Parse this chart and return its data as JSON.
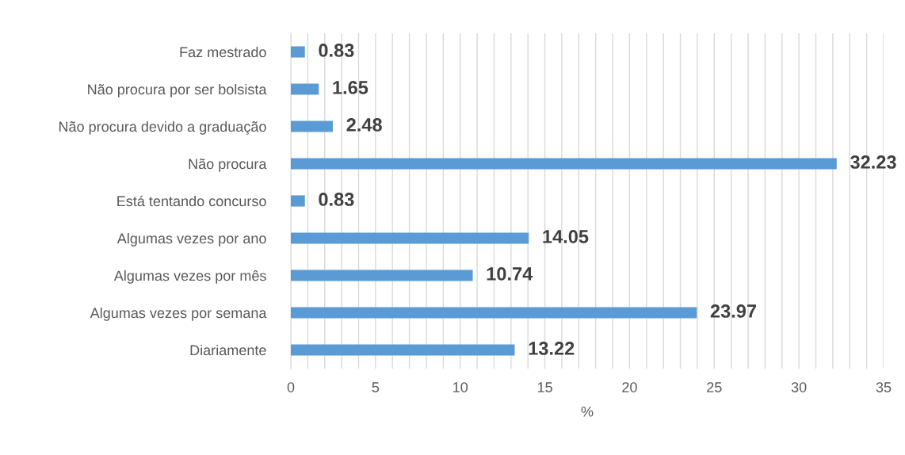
{
  "chart_data": {
    "type": "bar",
    "orientation": "horizontal",
    "xlabel": "%",
    "categories": [
      "Faz mestrado",
      "Não procura por ser bolsista",
      "Não procura devido a graduação",
      "Não procura",
      "Está tentando concurso",
      "Algumas vezes por ano",
      "Algumas vezes por mês",
      "Algumas vezes por semana",
      "Diariamente"
    ],
    "values": [
      0.83,
      1.65,
      2.48,
      32.23,
      0.83,
      14.05,
      10.74,
      23.97,
      13.22
    ],
    "color": "#5b9bd5",
    "data_labels": true,
    "grid": "x",
    "xlim": [
      0,
      35
    ],
    "xticks": [
      0,
      {
        "value": 1,
        "label": null
      },
      {
        "value": 2,
        "label": null
      },
      {
        "value": 3,
        "label": null
      },
      {
        "value": 4,
        "label": null
      },
      5,
      {
        "value": 6,
        "label": null
      },
      {
        "value": 7,
        "label": null
      },
      {
        "value": 8,
        "label": null
      },
      {
        "value": 9,
        "label": null
      },
      10,
      {
        "value": 11,
        "label": null
      },
      {
        "value": 12,
        "label": null
      },
      {
        "value": 13,
        "label": null
      },
      {
        "value": 14,
        "label": null
      },
      15,
      {
        "value": 16,
        "label": null
      },
      {
        "value": 17,
        "label": null
      },
      {
        "value": 18,
        "label": null
      },
      {
        "value": 19,
        "label": null
      },
      20,
      {
        "value": 21,
        "label": null
      },
      {
        "value": 22,
        "label": null
      },
      {
        "value": 23,
        "label": null
      },
      {
        "value": 24,
        "label": null
      },
      25,
      {
        "value": 26,
        "label": null
      },
      {
        "value": 27,
        "label": null
      },
      {
        "value": 28,
        "label": null
      },
      {
        "value": 29,
        "label": null
      },
      30,
      {
        "value": 31,
        "label": null
      },
      {
        "value": 32,
        "label": null
      },
      {
        "value": 33,
        "label": null
      },
      {
        "value": 34,
        "label": null
      },
      35
    ]
  }
}
